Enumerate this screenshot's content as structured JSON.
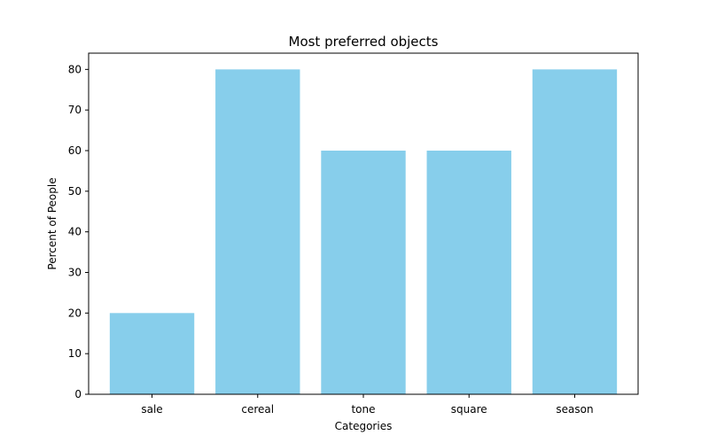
{
  "chart_data": {
    "type": "bar",
    "title": "Most preferred objects",
    "xlabel": "Categories",
    "ylabel": "Percent of People",
    "categories": [
      "sale",
      "cereal",
      "tone",
      "square",
      "season"
    ],
    "values": [
      20,
      80,
      60,
      60,
      80
    ],
    "ylim": [
      0,
      84
    ],
    "yticks": [
      "0",
      "10",
      "20",
      "30",
      "40",
      "50",
      "60",
      "70",
      "80"
    ],
    "bar_color": "#87ceeb",
    "grid": false,
    "legend": "none"
  }
}
